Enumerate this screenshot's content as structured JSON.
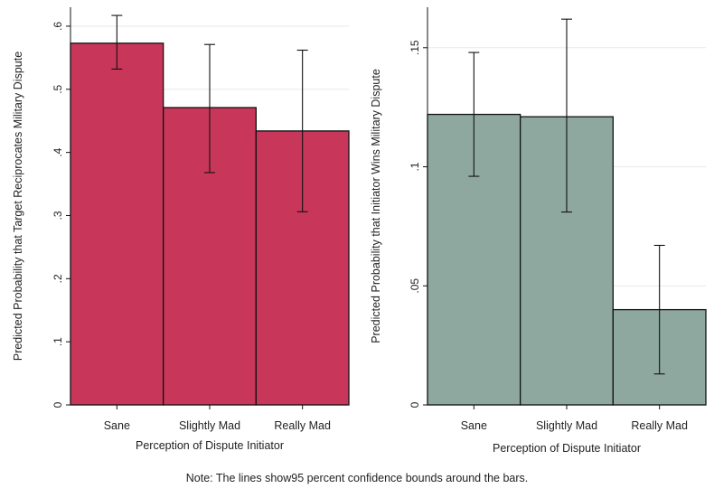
{
  "note": "Note: The lines show95 percent confidence bounds around the bars.",
  "chart_data": [
    {
      "type": "bar",
      "title": "",
      "categories": [
        "Sane",
        "Slightly Mad",
        "Really Mad"
      ],
      "values": [
        0.573,
        0.471,
        0.434
      ],
      "ci_low": [
        0.532,
        0.368,
        0.306
      ],
      "ci_high": [
        0.617,
        0.571,
        0.562
      ],
      "xlabel": "Perception of Dispute Initiator",
      "ylabel": "Predicted Probability that Target Reciprocates Military Dispute",
      "ylim": [
        0,
        0.63
      ],
      "yticks": [
        0,
        0.1,
        0.2,
        0.3,
        0.4,
        0.5,
        0.6
      ],
      "ytick_labels": [
        "0",
        ".1",
        ".2",
        ".3",
        ".4",
        ".5",
        ".6"
      ],
      "bar_color": "#c8375a",
      "grid": true,
      "legend": "none"
    },
    {
      "type": "bar",
      "title": "",
      "categories": [
        "Sane",
        "Slightly Mad",
        "Really Mad"
      ],
      "values": [
        0.122,
        0.121,
        0.04
      ],
      "ci_low": [
        0.096,
        0.081,
        0.013
      ],
      "ci_high": [
        0.148,
        0.162,
        0.067
      ],
      "xlabel": "Perception of Dispute Initiator",
      "ylabel": "Predicted Probability that Initiator Wins Military Dispute",
      "ylim": [
        0,
        0.167
      ],
      "yticks": [
        0,
        0.05,
        0.1,
        0.15
      ],
      "ytick_labels": [
        "0",
        ".05",
        ".1",
        ".15"
      ],
      "bar_color": "#8fa89f",
      "grid": true,
      "legend": "none"
    }
  ]
}
